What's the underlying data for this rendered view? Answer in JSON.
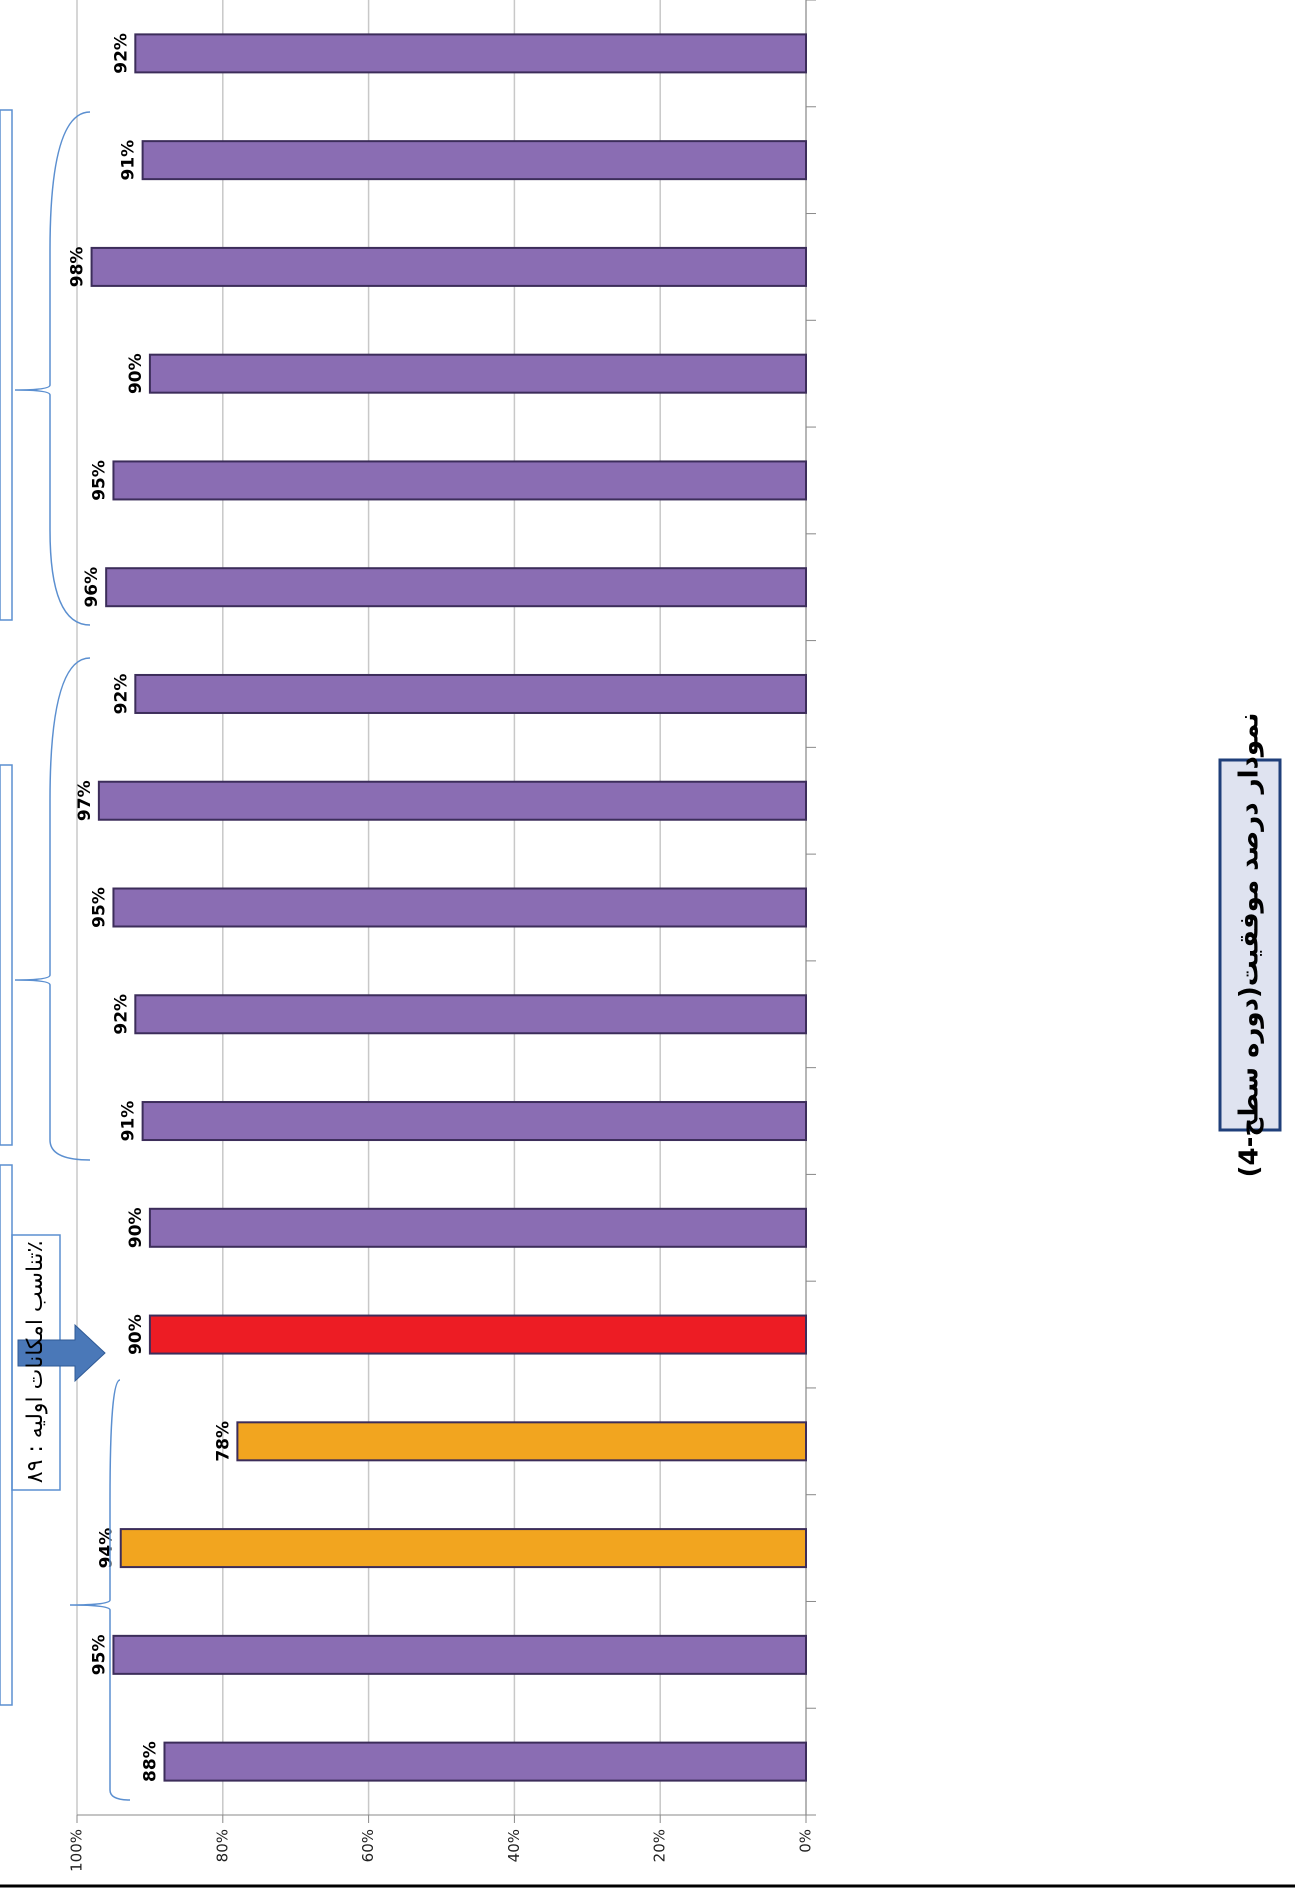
{
  "chart_data": {
    "type": "bar",
    "orientation": "horizontal",
    "title": "نمودار درصد موفقیت(دوره سطح-4)",
    "annotations": [
      "تناسب امکانات اولیه : ۸۹٪"
    ],
    "categories": [
      null,
      null,
      null,
      null,
      null,
      null,
      null,
      null,
      null,
      null,
      null,
      null,
      null,
      null,
      null,
      null,
      null
    ],
    "values": [
      92,
      91,
      98,
      90,
      95,
      96,
      92,
      97,
      95,
      92,
      91,
      90,
      90,
      78,
      94,
      95,
      88
    ],
    "value_labels": [
      "92%",
      "91%",
      "98%",
      "90%",
      "95%",
      "96%",
      "92%",
      "97%",
      "95%",
      "92%",
      "91%",
      "90%",
      "90%",
      "78%",
      "94%",
      "95%",
      "88%"
    ],
    "colors": [
      "#8a6db3",
      "#8a6db3",
      "#8a6db3",
      "#8a6db3",
      "#8a6db3",
      "#8a6db3",
      "#8a6db3",
      "#8a6db3",
      "#8a6db3",
      "#8a6db3",
      "#8a6db3",
      "#8a6db3",
      "#ed1c24",
      "#f2a51f",
      "#f2a51f",
      "#8a6db3",
      "#8a6db3"
    ],
    "xlim": [
      0,
      100
    ],
    "xticks": [
      {
        "value": 0,
        "label": "0%"
      },
      {
        "value": 20,
        "label": "20%"
      },
      {
        "value": 40,
        "label": "40%"
      },
      {
        "value": 60,
        "label": "60%"
      },
      {
        "value": 80,
        "label": "80%"
      },
      {
        "value": 100,
        "label": "100%"
      }
    ],
    "grid": true
  }
}
